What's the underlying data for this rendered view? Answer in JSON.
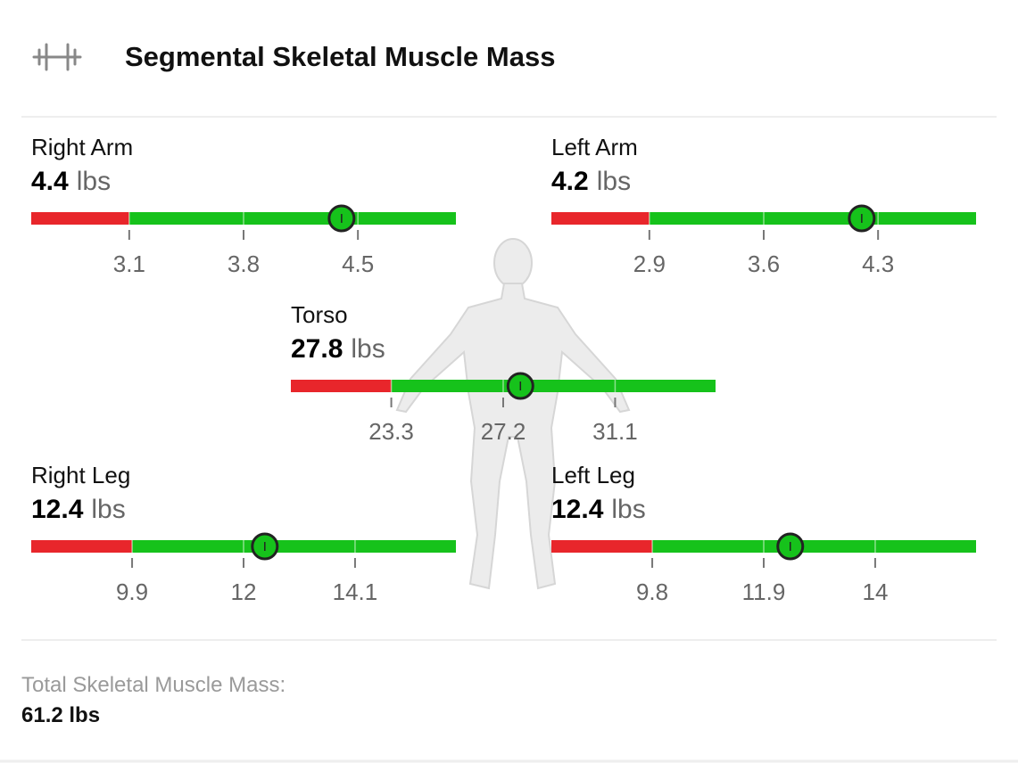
{
  "header": {
    "title": "Segmental Skeletal Muscle Mass"
  },
  "segments": [
    {
      "label": "Right Arm",
      "value": 4.4,
      "unit": "lbs",
      "range": [
        2.5,
        5.1
      ],
      "ticks": [
        3.1,
        3.8,
        4.5
      ]
    },
    {
      "label": "Left Arm",
      "value": 4.2,
      "unit": "lbs",
      "range": [
        2.3,
        4.9
      ],
      "ticks": [
        2.9,
        3.6,
        4.3
      ]
    },
    {
      "label": "Torso",
      "value": 27.8,
      "unit": "lbs",
      "range": [
        19.8,
        34.6
      ],
      "ticks": [
        23.3,
        27.2,
        31.1
      ]
    },
    {
      "label": "Right Leg",
      "value": 12.4,
      "unit": "lbs",
      "range": [
        8.0,
        16.0
      ],
      "ticks": [
        9.9,
        12,
        14.1
      ]
    },
    {
      "label": "Left Leg",
      "value": 12.4,
      "unit": "lbs",
      "range": [
        7.9,
        15.9
      ],
      "ticks": [
        9.8,
        11.9,
        14
      ]
    }
  ],
  "footer": {
    "label": "Total Skeletal Muscle Mass:",
    "value": "61.2 lbs"
  }
}
